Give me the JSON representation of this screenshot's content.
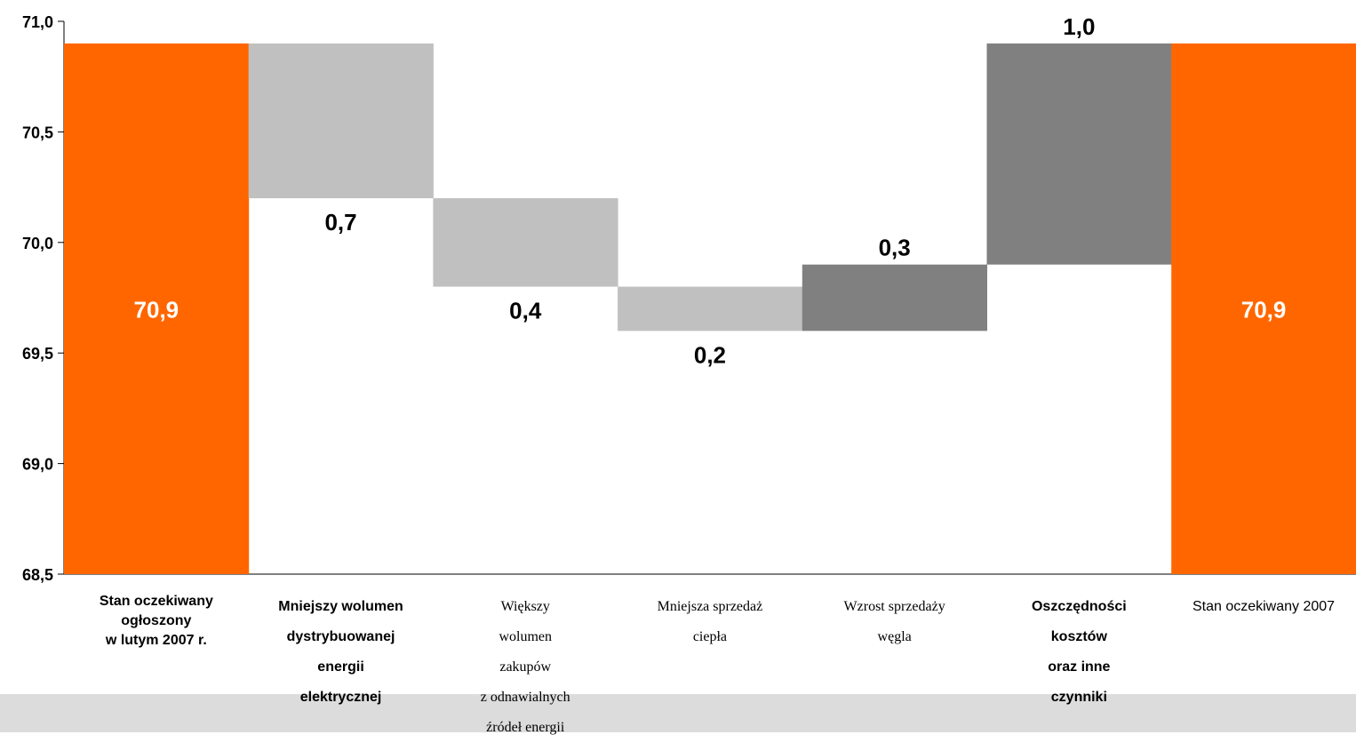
{
  "chart_data": {
    "type": "bar",
    "subtype": "waterfall",
    "ylim": [
      68.5,
      71.0
    ],
    "yticks": [
      "71,0",
      "70,5",
      "70,0",
      "69,5",
      "69,0",
      "68,5"
    ],
    "ytick_values": [
      71.0,
      70.5,
      70.0,
      69.5,
      69.0,
      68.5
    ],
    "bars": [
      {
        "category": "Stan oczekiwany\nogłoszony\nw lutym 2007 r.",
        "kind": "total",
        "start": 68.5,
        "end": 70.9,
        "label": "70,9",
        "color": "#ff6600",
        "label_color": "#ffffff",
        "label_style": "bold",
        "font": "sans"
      },
      {
        "category": "Mniejszy wolumen\ndystrybuowanej\nenergii\nelektrycznej",
        "kind": "decrease",
        "start": 70.9,
        "end": 70.2,
        "label": "0,7",
        "color": "#c0c0c0",
        "label_color": "#000000",
        "label_style": "bold",
        "font": "sans"
      },
      {
        "category": "Większy\nwolumen\nzakupów\nz odnawialnych\nźródeł energii",
        "kind": "decrease",
        "start": 70.2,
        "end": 69.8,
        "label": "0,4",
        "color": "#c0c0c0",
        "label_color": "#000000",
        "label_style": "normal",
        "font": "serif"
      },
      {
        "category": "Mniejsza sprzedaż\nciepła",
        "kind": "decrease",
        "start": 69.8,
        "end": 69.6,
        "label": "0,2",
        "color": "#c0c0c0",
        "label_color": "#000000",
        "label_style": "normal",
        "font": "serif"
      },
      {
        "category": "Wzrost sprzedaży\nwęgla",
        "kind": "increase",
        "start": 69.6,
        "end": 69.9,
        "label": "0,3",
        "color": "#808080",
        "label_color": "#000000",
        "label_style": "normal",
        "font": "serif"
      },
      {
        "category": "Oszczędności\nkosztów\noraz inne\nczynniki",
        "kind": "increase",
        "start": 69.9,
        "end": 70.9,
        "label": "1,0",
        "color": "#808080",
        "label_color": "#000000",
        "label_style": "bold",
        "font": "sans"
      },
      {
        "category": "Stan oczekiwany 2007",
        "kind": "total",
        "start": 68.5,
        "end": 70.9,
        "label": "70,9",
        "color": "#ff6600",
        "label_color": "#ffffff",
        "label_style": "normal",
        "font": "sans"
      }
    ]
  }
}
